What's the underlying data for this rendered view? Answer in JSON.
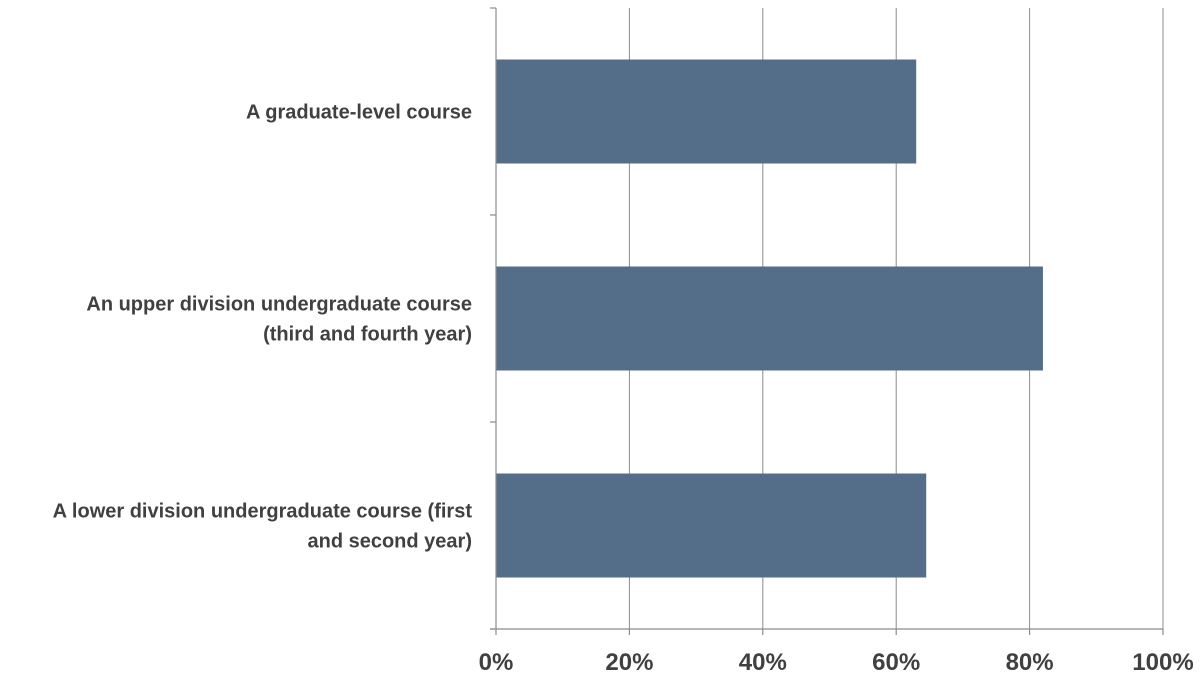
{
  "colors": {
    "bar": "#546e8a",
    "grid": "#8c8c8c",
    "label_text": "#404040"
  },
  "chart_data": {
    "type": "bar",
    "orientation": "horizontal",
    "categories": [
      [
        "A graduate-level course"
      ],
      [
        "An upper division undergraduate course",
        "(third and fourth year)"
      ],
      [
        "A lower division undergraduate course (first",
        "and second year)"
      ]
    ],
    "values": [
      63,
      82,
      64.5
    ],
    "xlim": [
      0,
      100
    ],
    "x_ticks": [
      0,
      20,
      40,
      60,
      80,
      100
    ],
    "x_tick_labels": [
      "0%",
      "20%",
      "40%",
      "60%",
      "80%",
      "100%"
    ],
    "grid": "vertical",
    "legend": "none",
    "title": "",
    "xlabel": "",
    "ylabel": ""
  }
}
